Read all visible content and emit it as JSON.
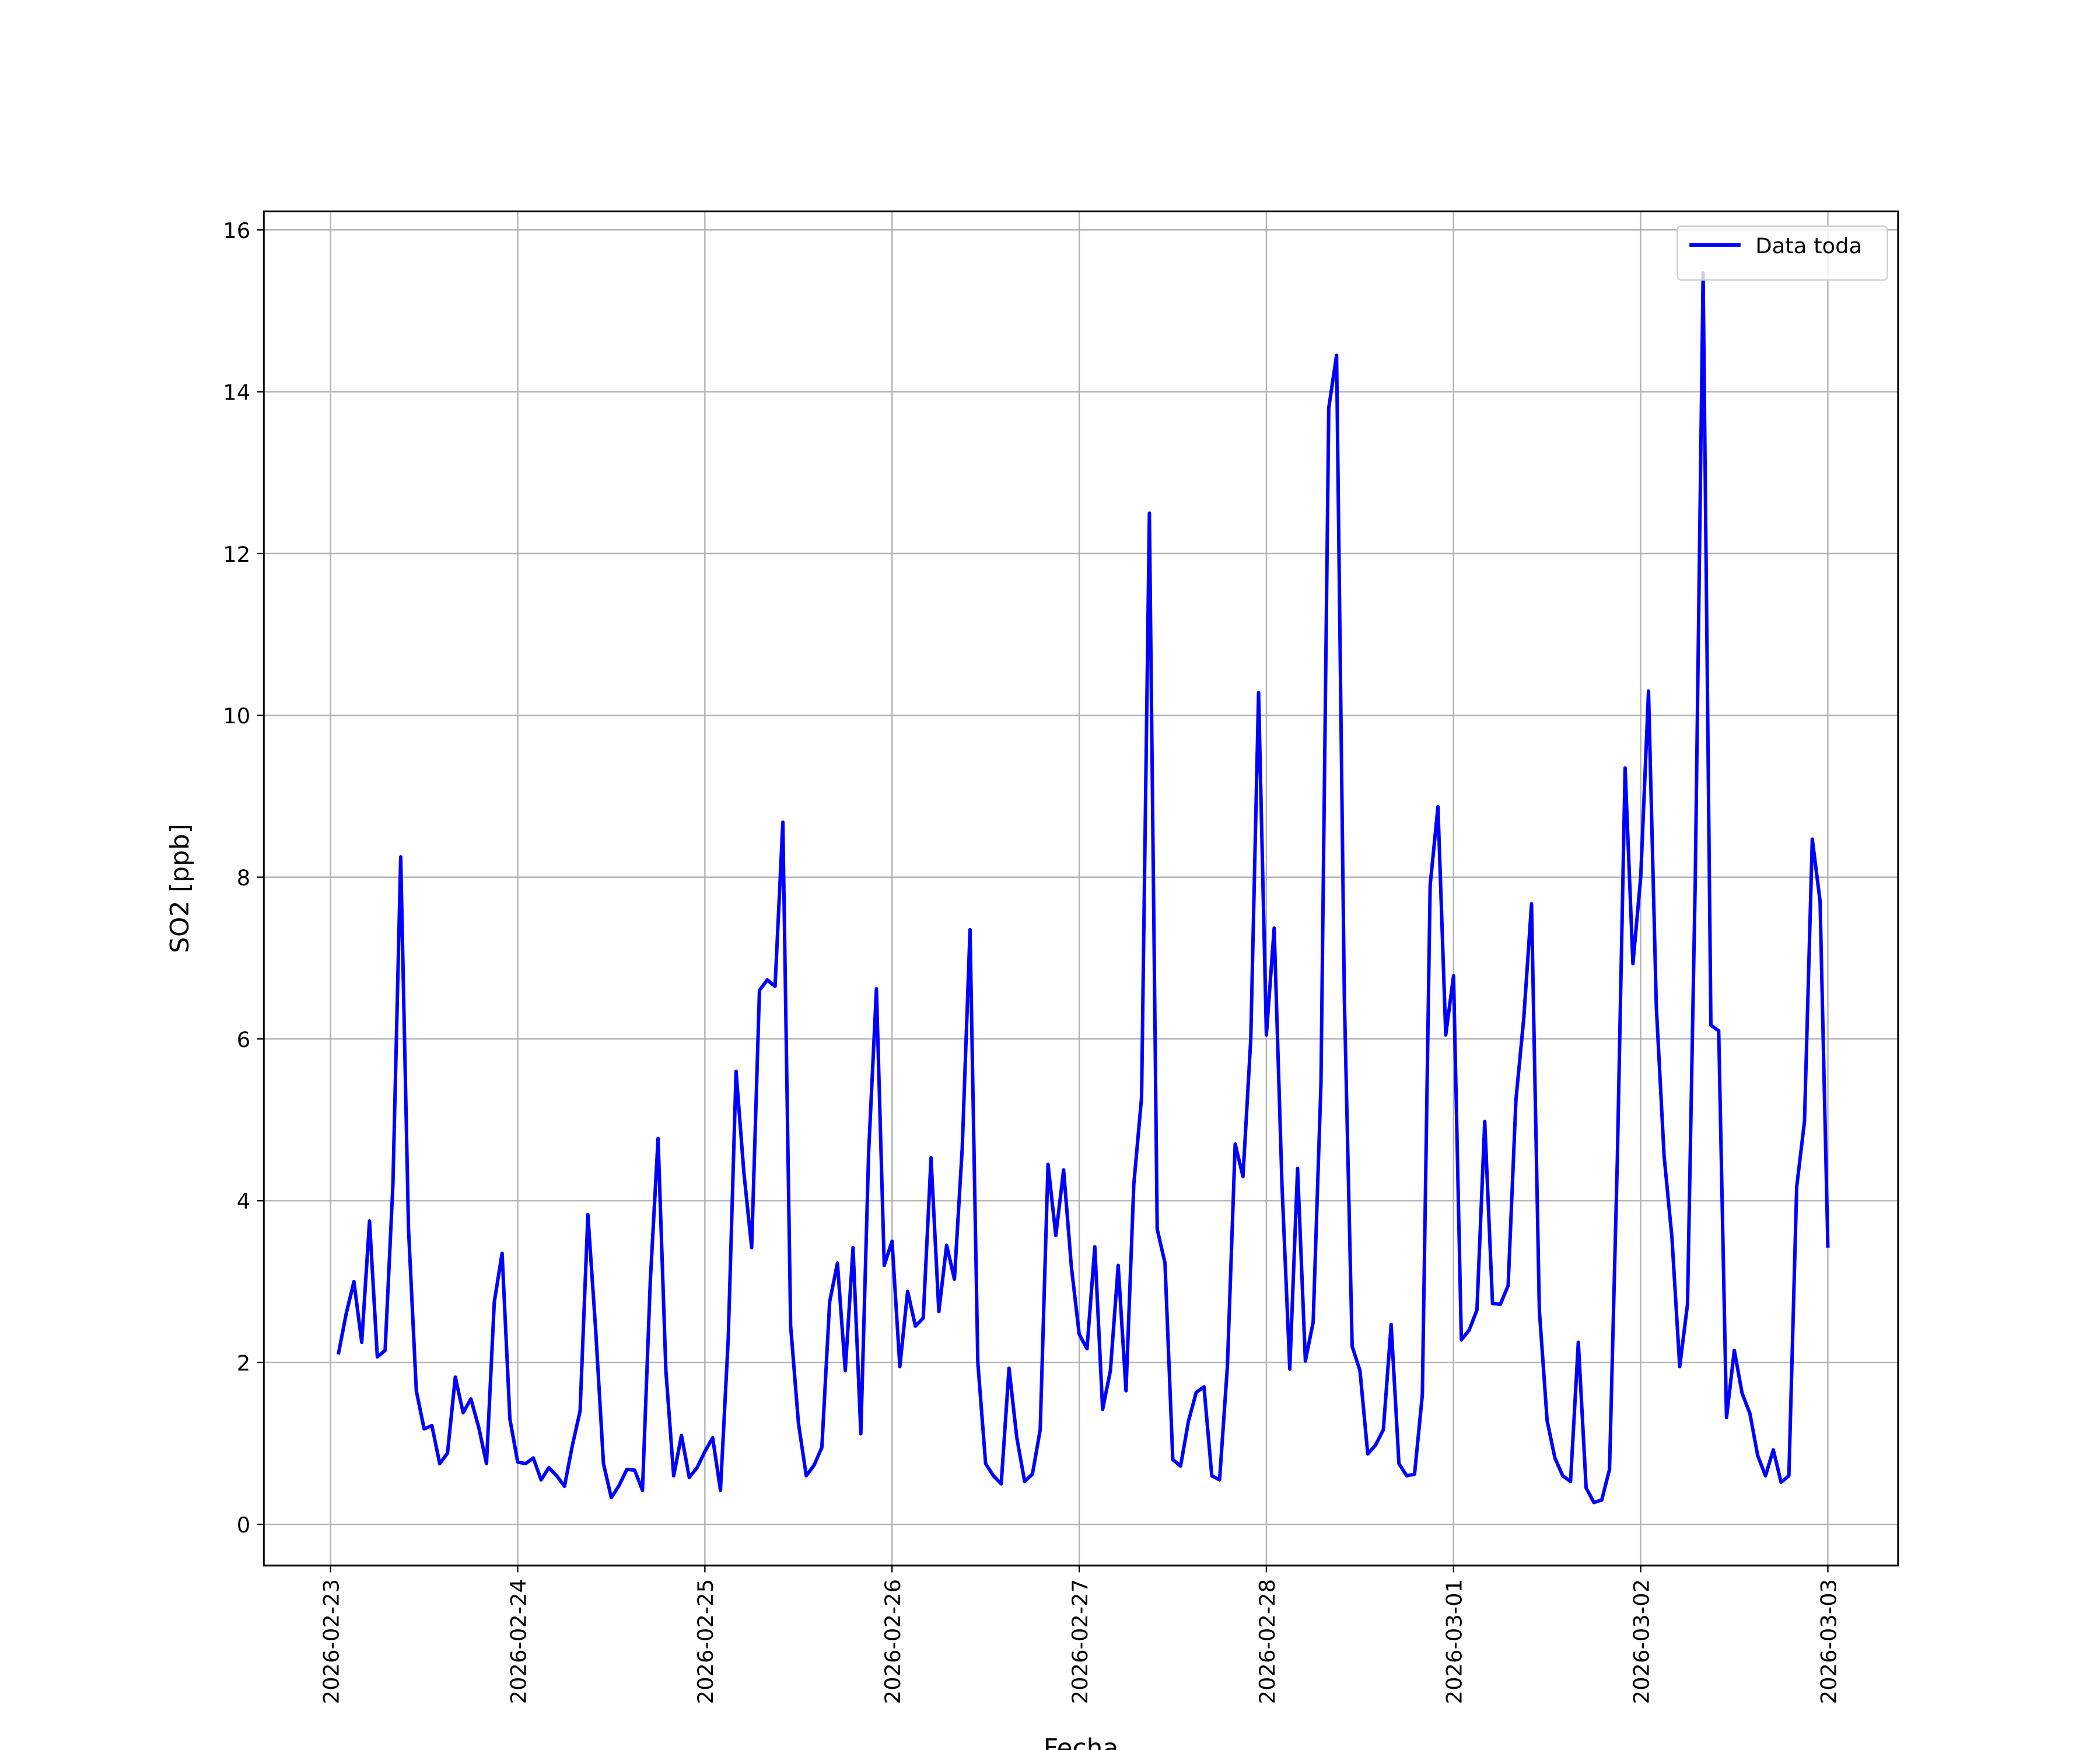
{
  "chart_data": {
    "type": "line",
    "xlabel": "Fecha",
    "ylabel": "SO2 [ppb]",
    "x": [
      "2026-02-23 01:00",
      "2026-02-23 02:00",
      "2026-02-23 03:00",
      "2026-02-23 04:00",
      "2026-02-23 05:00",
      "2026-02-23 06:00",
      "2026-02-23 07:00",
      "2026-02-23 08:00",
      "2026-02-23 09:00",
      "2026-02-23 10:00",
      "2026-02-23 11:00",
      "2026-02-23 12:00",
      "2026-02-23 13:00",
      "2026-02-23 14:00",
      "2026-02-23 15:00",
      "2026-02-23 16:00",
      "2026-02-23 17:00",
      "2026-02-23 18:00",
      "2026-02-23 19:00",
      "2026-02-23 20:00",
      "2026-02-23 21:00",
      "2026-02-23 22:00",
      "2026-02-23 23:00",
      "2026-02-24 00:00",
      "2026-02-24 01:00",
      "2026-02-24 02:00",
      "2026-02-24 03:00",
      "2026-02-24 04:00",
      "2026-02-24 05:00",
      "2026-02-24 06:00",
      "2026-02-24 07:00",
      "2026-02-24 08:00",
      "2026-02-24 09:00",
      "2026-02-24 10:00",
      "2026-02-24 11:00",
      "2026-02-24 12:00",
      "2026-02-24 13:00",
      "2026-02-24 14:00",
      "2026-02-24 15:00",
      "2026-02-24 16:00",
      "2026-02-24 17:00",
      "2026-02-24 18:00",
      "2026-02-24 19:00",
      "2026-02-24 20:00",
      "2026-02-24 21:00",
      "2026-02-24 22:00",
      "2026-02-24 23:00",
      "2026-02-25 00:00",
      "2026-02-25 01:00",
      "2026-02-25 02:00",
      "2026-02-25 03:00",
      "2026-02-25 04:00",
      "2026-02-25 05:00",
      "2026-02-25 06:00",
      "2026-02-25 07:00",
      "2026-02-25 08:00",
      "2026-02-25 09:00",
      "2026-02-25 10:00",
      "2026-02-25 11:00",
      "2026-02-25 12:00",
      "2026-02-25 13:00",
      "2026-02-25 14:00",
      "2026-02-25 15:00",
      "2026-02-25 16:00",
      "2026-02-25 17:00",
      "2026-02-25 18:00",
      "2026-02-25 19:00",
      "2026-02-25 20:00",
      "2026-02-25 21:00",
      "2026-02-25 22:00",
      "2026-02-25 23:00",
      "2026-02-26 00:00",
      "2026-02-26 01:00",
      "2026-02-26 02:00",
      "2026-02-26 03:00",
      "2026-02-26 04:00",
      "2026-02-26 05:00",
      "2026-02-26 06:00",
      "2026-02-26 07:00",
      "2026-02-26 08:00",
      "2026-02-26 09:00",
      "2026-02-26 10:00",
      "2026-02-26 11:00",
      "2026-02-26 12:00",
      "2026-02-26 13:00",
      "2026-02-26 14:00",
      "2026-02-26 15:00",
      "2026-02-26 16:00",
      "2026-02-26 17:00",
      "2026-02-26 18:00",
      "2026-02-26 19:00",
      "2026-02-26 20:00",
      "2026-02-26 21:00",
      "2026-02-26 22:00",
      "2026-02-26 23:00",
      "2026-02-27 00:00",
      "2026-02-27 01:00",
      "2026-02-27 02:00",
      "2026-02-27 03:00",
      "2026-02-27 04:00",
      "2026-02-27 05:00",
      "2026-02-27 06:00",
      "2026-02-27 07:00",
      "2026-02-27 08:00",
      "2026-02-27 09:00",
      "2026-02-27 10:00",
      "2026-02-27 11:00",
      "2026-02-27 12:00",
      "2026-02-27 13:00",
      "2026-02-27 14:00",
      "2026-02-27 15:00",
      "2026-02-27 16:00",
      "2026-02-27 17:00",
      "2026-02-27 18:00",
      "2026-02-27 19:00",
      "2026-02-27 20:00",
      "2026-02-27 21:00",
      "2026-02-27 22:00",
      "2026-02-27 23:00",
      "2026-02-28 00:00",
      "2026-02-28 01:00",
      "2026-02-28 02:00",
      "2026-02-28 03:00",
      "2026-02-28 04:00",
      "2026-02-28 05:00",
      "2026-02-28 06:00",
      "2026-02-28 07:00",
      "2026-02-28 08:00",
      "2026-02-28 09:00",
      "2026-02-28 10:00",
      "2026-02-28 11:00",
      "2026-02-28 12:00",
      "2026-02-28 13:00",
      "2026-02-28 14:00",
      "2026-02-28 15:00",
      "2026-02-28 16:00",
      "2026-02-28 17:00",
      "2026-02-28 18:00",
      "2026-02-28 19:00",
      "2026-02-28 20:00",
      "2026-02-28 21:00",
      "2026-02-28 22:00",
      "2026-02-28 23:00",
      "2026-03-01 00:00",
      "2026-03-01 01:00",
      "2026-03-01 02:00",
      "2026-03-01 03:00",
      "2026-03-01 04:00",
      "2026-03-01 05:00",
      "2026-03-01 06:00",
      "2026-03-01 07:00",
      "2026-03-01 08:00",
      "2026-03-01 09:00",
      "2026-03-01 10:00",
      "2026-03-01 11:00",
      "2026-03-01 12:00",
      "2026-03-01 13:00",
      "2026-03-01 14:00",
      "2026-03-01 15:00",
      "2026-03-01 16:00",
      "2026-03-01 17:00",
      "2026-03-01 18:00",
      "2026-03-01 19:00",
      "2026-03-01 20:00",
      "2026-03-01 21:00",
      "2026-03-01 22:00",
      "2026-03-01 23:00",
      "2026-03-02 00:00",
      "2026-03-02 01:00",
      "2026-03-02 02:00",
      "2026-03-02 03:00",
      "2026-03-02 04:00",
      "2026-03-02 05:00",
      "2026-03-02 06:00",
      "2026-03-02 07:00",
      "2026-03-02 08:00",
      "2026-03-02 09:00",
      "2026-03-02 10:00",
      "2026-03-02 11:00",
      "2026-03-02 12:00",
      "2026-03-02 13:00",
      "2026-03-02 14:00",
      "2026-03-02 15:00",
      "2026-03-02 16:00",
      "2026-03-02 17:00",
      "2026-03-02 18:00",
      "2026-03-02 19:00",
      "2026-03-02 20:00",
      "2026-03-02 21:00",
      "2026-03-02 22:00",
      "2026-03-02 23:00",
      "2026-03-03 00:00"
    ],
    "series": [
      {
        "name": "Data toda",
        "color": "#0000ff",
        "values": [
          2.1,
          2.6,
          3.0,
          2.25,
          3.75,
          2.07,
          2.15,
          4.2,
          8.25,
          3.65,
          1.65,
          1.18,
          1.22,
          0.75,
          0.88,
          1.82,
          1.38,
          1.55,
          1.2,
          0.75,
          2.75,
          3.35,
          1.3,
          0.77,
          0.75,
          0.82,
          0.55,
          0.7,
          0.6,
          0.47,
          0.97,
          1.4,
          3.83,
          2.4,
          0.75,
          0.33,
          0.48,
          0.68,
          0.67,
          0.42,
          3.0,
          4.77,
          1.9,
          0.6,
          1.1,
          0.58,
          0.7,
          0.9,
          1.07,
          0.42,
          2.3,
          5.6,
          4.35,
          3.42,
          6.6,
          6.73,
          6.65,
          8.68,
          2.45,
          1.25,
          0.6,
          0.73,
          0.95,
          2.75,
          3.23,
          1.9,
          3.42,
          1.12,
          4.6,
          6.62,
          3.2,
          3.5,
          1.95,
          2.88,
          2.45,
          2.55,
          4.53,
          2.63,
          3.45,
          3.03,
          4.65,
          7.35,
          2.0,
          0.75,
          0.6,
          0.5,
          1.93,
          1.07,
          0.53,
          0.62,
          1.17,
          4.45,
          3.57,
          4.38,
          3.18,
          2.35,
          2.17,
          3.43,
          1.42,
          1.9,
          3.2,
          1.65,
          4.2,
          5.28,
          12.5,
          3.65,
          3.23,
          0.8,
          0.72,
          1.27,
          1.63,
          1.7,
          0.6,
          0.55,
          1.95,
          4.7,
          4.3,
          6.0,
          10.28,
          6.05,
          7.37,
          4.2,
          1.92,
          4.4,
          2.02,
          2.5,
          5.45,
          13.8,
          14.45,
          6.5,
          2.2,
          1.9,
          0.87,
          0.98,
          1.17,
          2.47,
          0.75,
          0.6,
          0.62,
          1.6,
          7.9,
          8.87,
          6.05,
          6.78,
          2.28,
          2.4,
          2.65,
          4.98,
          2.73,
          2.72,
          2.95,
          5.25,
          6.25,
          7.67,
          2.65,
          1.28,
          0.82,
          0.6,
          0.53,
          2.25,
          0.45,
          0.27,
          0.3,
          0.68,
          4.5,
          9.35,
          6.93,
          8.0,
          10.3,
          6.4,
          4.55,
          3.55,
          1.95,
          2.72,
          8.0,
          15.47,
          6.17,
          6.1,
          1.32,
          2.15,
          1.62,
          1.37,
          0.85,
          0.6,
          0.92,
          0.52,
          0.6,
          4.17,
          4.98,
          8.47,
          7.7,
          3.42
        ]
      }
    ],
    "xlim": [
      "2026-02-22 15:27",
      "2026-03-03 09:00"
    ],
    "xticks": [
      "2026-02-23",
      "2026-02-24",
      "2026-02-25",
      "2026-02-26",
      "2026-02-27",
      "2026-02-28",
      "2026-03-01",
      "2026-03-02",
      "2026-03-03"
    ],
    "ylim": [
      -0.51,
      16.23
    ],
    "yticks": [
      0,
      2,
      4,
      6,
      8,
      10,
      12,
      14,
      16
    ],
    "grid": true,
    "legend": "upper right"
  }
}
